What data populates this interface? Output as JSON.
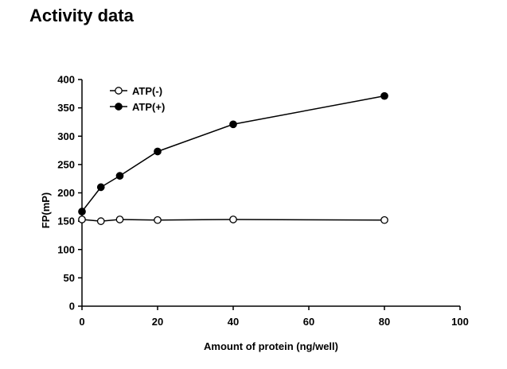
{
  "page": {
    "title": "Activity data"
  },
  "chart_data": {
    "type": "line",
    "xlabel": "Amount of protein (ng/well)",
    "ylabel": "FP(mP)",
    "xlim": [
      0,
      100
    ],
    "ylim": [
      0,
      400
    ],
    "xticks": [
      0,
      20,
      40,
      60,
      80,
      100
    ],
    "yticks": [
      0,
      50,
      100,
      150,
      200,
      250,
      300,
      350,
      400
    ],
    "grid": false,
    "legend_position": "top-left",
    "x": [
      0,
      5,
      10,
      20,
      40,
      80
    ],
    "series": [
      {
        "name": "ATP(-)",
        "marker": "open-circle",
        "color": "#000000",
        "values": [
          153,
          150,
          153,
          152,
          153,
          152
        ]
      },
      {
        "name": "ATP(+)",
        "marker": "filled-circle",
        "color": "#000000",
        "values": [
          167,
          210,
          230,
          273,
          321,
          371
        ]
      }
    ]
  }
}
